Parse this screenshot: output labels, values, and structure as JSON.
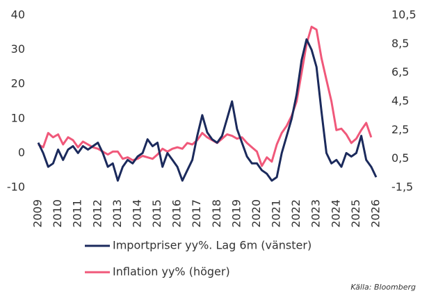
{
  "chart_data": {
    "type": "line",
    "x": [
      2009,
      2009.25,
      2009.5,
      2009.75,
      2010,
      2010.25,
      2010.5,
      2010.75,
      2011,
      2011.25,
      2011.5,
      2011.75,
      2012,
      2012.25,
      2012.5,
      2012.75,
      2013,
      2013.25,
      2013.5,
      2013.75,
      2014,
      2014.25,
      2014.5,
      2014.75,
      2015,
      2015.25,
      2015.5,
      2015.75,
      2016,
      2016.25,
      2016.5,
      2016.75,
      2017,
      2017.25,
      2017.5,
      2017.75,
      2018,
      2018.25,
      2018.5,
      2018.75,
      2019,
      2019.25,
      2019.5,
      2019.75,
      2020,
      2020.25,
      2020.5,
      2020.75,
      2021,
      2021.25,
      2021.5,
      2021.75,
      2022,
      2022.25,
      2022.5,
      2022.75,
      2023,
      2023.25,
      2023.5,
      2023.75,
      2024,
      2024.25,
      2024.5,
      2024.75,
      2025,
      2025.25,
      2025.5,
      2025.75,
      2026
    ],
    "series": [
      {
        "name": "Importpriser yy%. Lag 6m (vänster)",
        "color": "#1b2a5c",
        "axis": "y",
        "values": [
          3,
          0,
          -4,
          -3,
          1,
          -2,
          1,
          2,
          0,
          2,
          1,
          2,
          3,
          0,
          -4,
          -3,
          -8,
          -4,
          -2,
          -3,
          -1,
          0,
          4,
          2,
          3,
          -4,
          0,
          -2,
          -4,
          -8,
          -5,
          -2,
          5,
          11,
          6,
          4,
          3,
          5,
          10,
          15,
          7,
          3,
          -1,
          -3,
          -3,
          -5,
          -6,
          -8,
          -7,
          0,
          5,
          10,
          17,
          27,
          33,
          30,
          25,
          12,
          0,
          -3,
          -2,
          -4,
          0,
          -1,
          0,
          5,
          -2,
          -4,
          -7
        ]
      },
      {
        "name": "Inflation yy% (höger)",
        "color": "#f0587a",
        "axis": "y2",
        "values": [
          1.5,
          1.3,
          2.3,
          2.0,
          2.2,
          1.5,
          2.0,
          1.8,
          1.3,
          1.7,
          1.5,
          1.3,
          1.2,
          1.0,
          0.8,
          1.0,
          1.0,
          0.5,
          0.6,
          0.4,
          0.5,
          0.7,
          0.6,
          0.5,
          0.8,
          1.2,
          1.0,
          1.2,
          1.3,
          1.2,
          1.6,
          1.5,
          1.8,
          2.3,
          2.0,
          1.8,
          1.6,
          1.9,
          2.2,
          2.1,
          1.9,
          2.0,
          1.6,
          1.3,
          1.0,
          0.0,
          0.6,
          0.3,
          1.5,
          2.3,
          2.8,
          3.5,
          4.5,
          6.5,
          8.5,
          9.7,
          9.5,
          7.5,
          6.0,
          4.5,
          2.5,
          2.6,
          2.2,
          1.6,
          1.9,
          2.5,
          3.0,
          2.0,
          null
        ]
      }
    ],
    "xlim": [
      2009,
      2026
    ],
    "xticks": [
      2009,
      2010,
      2011,
      2012,
      2013,
      2014,
      2015,
      2016,
      2017,
      2018,
      2019,
      2020,
      2021,
      2022,
      2023,
      2024,
      2025,
      2026
    ],
    "ylim": [
      -10,
      40
    ],
    "yticks": [
      -10,
      0,
      10,
      20,
      30,
      40
    ],
    "y2lim": [
      -1.5,
      10.5
    ],
    "y2ticks": [
      {
        "value": -1.5,
        "label": "-1,5"
      },
      {
        "value": 0.5,
        "label": "0,5"
      },
      {
        "value": 2.5,
        "label": "2,5"
      },
      {
        "value": 4.5,
        "label": "4,5"
      },
      {
        "value": 6.5,
        "label": "6,5"
      },
      {
        "value": 8.5,
        "label": "8,5"
      },
      {
        "value": 10.5,
        "label": "10,5"
      }
    ],
    "source": "Källa: Bloomberg"
  }
}
